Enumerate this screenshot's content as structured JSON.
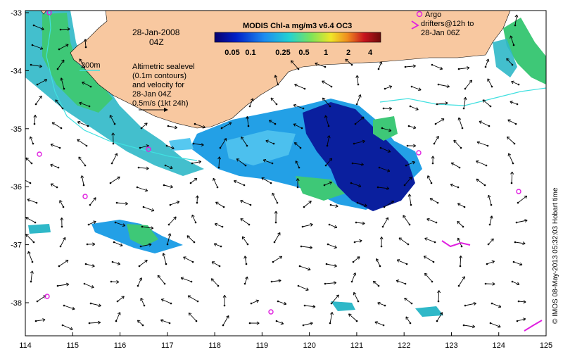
{
  "map": {
    "date": "28-Jan-2008",
    "time": "04Z",
    "colorbar": {
      "title": "MODIS Chl-a mg/m3 v6.4 OC3",
      "labels": [
        "0.05",
        "0.1",
        "0.25",
        "0.5",
        "1",
        "2",
        "4"
      ],
      "colors": [
        "#08006e",
        "#0020c8",
        "#1d8cf0",
        "#23d2d2",
        "#7ce35a",
        "#f0e628",
        "#f08c1e",
        "#c8141e",
        "#6e0a0a"
      ]
    },
    "legend_altimetry": {
      "line1": "Altimetric sealevel",
      "line2": "(0.1m contours)",
      "line3": "and velocity for",
      "line4": "28-Jan 04Z",
      "line5": "0.5m/s (1kt 24h)"
    },
    "legend_argo": {
      "line1": "Argo",
      "line2": "drifters@12h to",
      "line3": "28-Jan 06Z"
    },
    "isobath_label": "200m",
    "credit": "© IMOS 08-May-2013 05:32:03 Hobart time",
    "x_ticks": [
      "114",
      "115",
      "116",
      "117",
      "118",
      "119",
      "120",
      "121",
      "122",
      "123",
      "124",
      "125"
    ],
    "y_ticks": [
      "-33",
      "-34",
      "-35",
      "-36",
      "-37",
      "-38"
    ],
    "colors": {
      "land": "#f8c8a0",
      "ocean": "#ffffff",
      "isobath": "#40e0e0",
      "argo": "#e020e0"
    }
  }
}
